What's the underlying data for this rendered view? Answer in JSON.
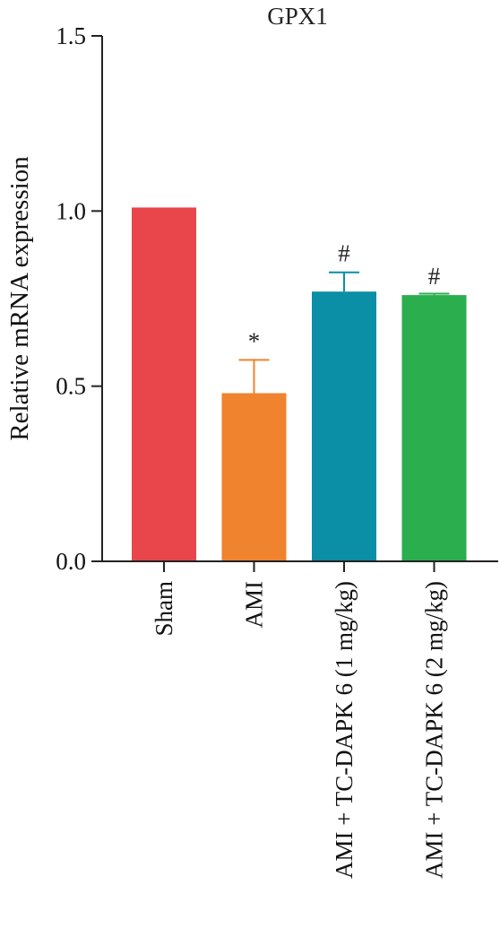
{
  "chart_data": {
    "type": "bar",
    "title": "GPX1",
    "ylabel": "Relative mRNA expression",
    "xlabel": "",
    "ylim": [
      0,
      1.5
    ],
    "yticks": [
      0.0,
      0.5,
      1.0,
      1.5
    ],
    "ytick_labels": [
      "0.0",
      "0.5",
      "1.0",
      "1.5"
    ],
    "categories": [
      "Sham",
      "AMI",
      "AMI + TC-DAPK 6 (1 mg/kg)",
      "AMI + TC-DAPK 6 (2 mg/kg)"
    ],
    "values": [
      1.01,
      0.48,
      0.77,
      0.76
    ],
    "errors": [
      0.0,
      0.095,
      0.055,
      0.004
    ],
    "annotations": [
      "",
      "*",
      "#",
      "#"
    ],
    "colors": [
      "#e8464b",
      "#f0832e",
      "#0a8fa6",
      "#2aae4e"
    ],
    "grid": false,
    "legend": "none"
  }
}
